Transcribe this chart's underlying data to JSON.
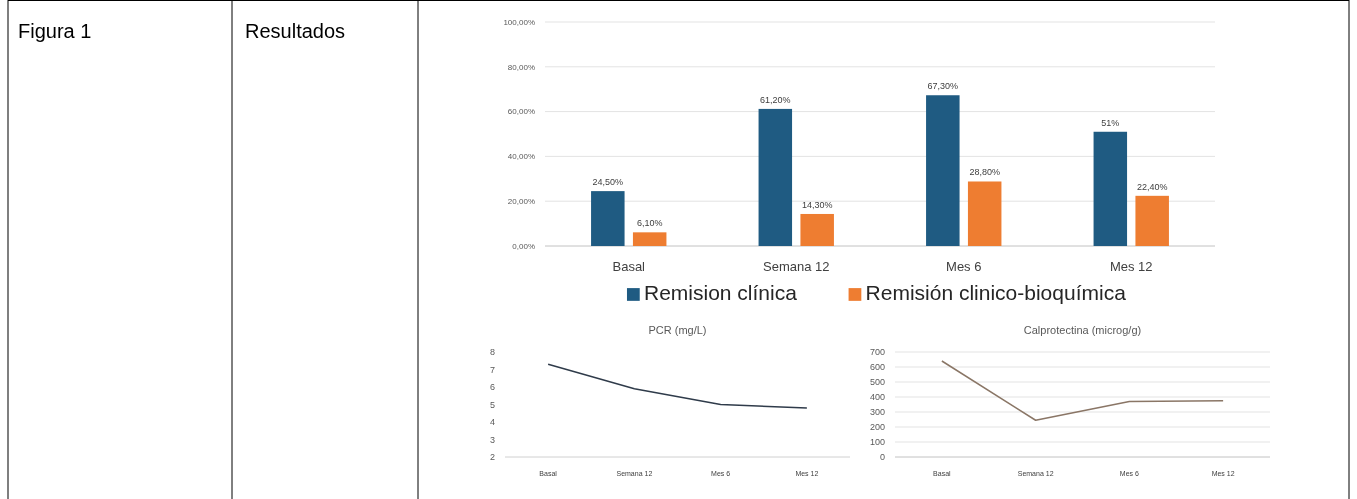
{
  "chart_data": [
    {
      "type": "other",
      "annotations": [
        "Figura 1",
        "Resultados"
      ]
    },
    {
      "type": "bar",
      "categories": [
        "Basal",
        "Semana 12",
        "Mes 6",
        "Mes 12"
      ],
      "series": [
        {
          "name": "Remision clínica",
          "color": "#1f5b82",
          "values": [
            24.5,
            61.2,
            67.3,
            51
          ],
          "value_labels": [
            "24,50%",
            "61,20%",
            "67,30%",
            "51%"
          ]
        },
        {
          "name": "Remisión clinico-bioquímica",
          "color": "#ee7d31",
          "values": [
            6.1,
            14.3,
            28.8,
            22.4
          ],
          "value_labels": [
            "6,10%",
            "14,30%",
            "28,80%",
            "22,40%"
          ]
        }
      ],
      "ylim": [
        0,
        100
      ],
      "yticks": [
        {
          "value": 0,
          "label": "0,00%"
        },
        {
          "value": 20,
          "label": "20,00%"
        },
        {
          "value": 40,
          "label": "40,00%"
        },
        {
          "value": 60,
          "label": "60,00%"
        },
        {
          "value": 80,
          "label": "80,00%"
        },
        {
          "value": 100,
          "label": "100,00%"
        }
      ],
      "grid": "y",
      "legend": "bottom"
    },
    {
      "type": "line",
      "title": "PCR (mg/L)",
      "categories": [
        "Basal",
        "Semana 12",
        "Mes 6",
        "Mes 12"
      ],
      "series": [
        {
          "color": "#2f3b4a",
          "values": [
            7.3,
            5.9,
            5.0,
            4.8
          ]
        }
      ],
      "ylim": [
        2,
        8
      ],
      "yticks": [
        2,
        3,
        4,
        5,
        6,
        7,
        8
      ]
    },
    {
      "type": "line",
      "title": "Calprotectina (microg/g)",
      "categories": [
        "Basal",
        "Semana 12",
        "Mes 6",
        "Mes 12"
      ],
      "series": [
        {
          "color": "#8a7666",
          "values": [
            640,
            245,
            370,
            375
          ]
        }
      ],
      "ylim": [
        0,
        700
      ],
      "yticks": [
        0,
        100,
        200,
        300,
        400,
        500,
        600,
        700
      ],
      "grid": "y"
    }
  ]
}
